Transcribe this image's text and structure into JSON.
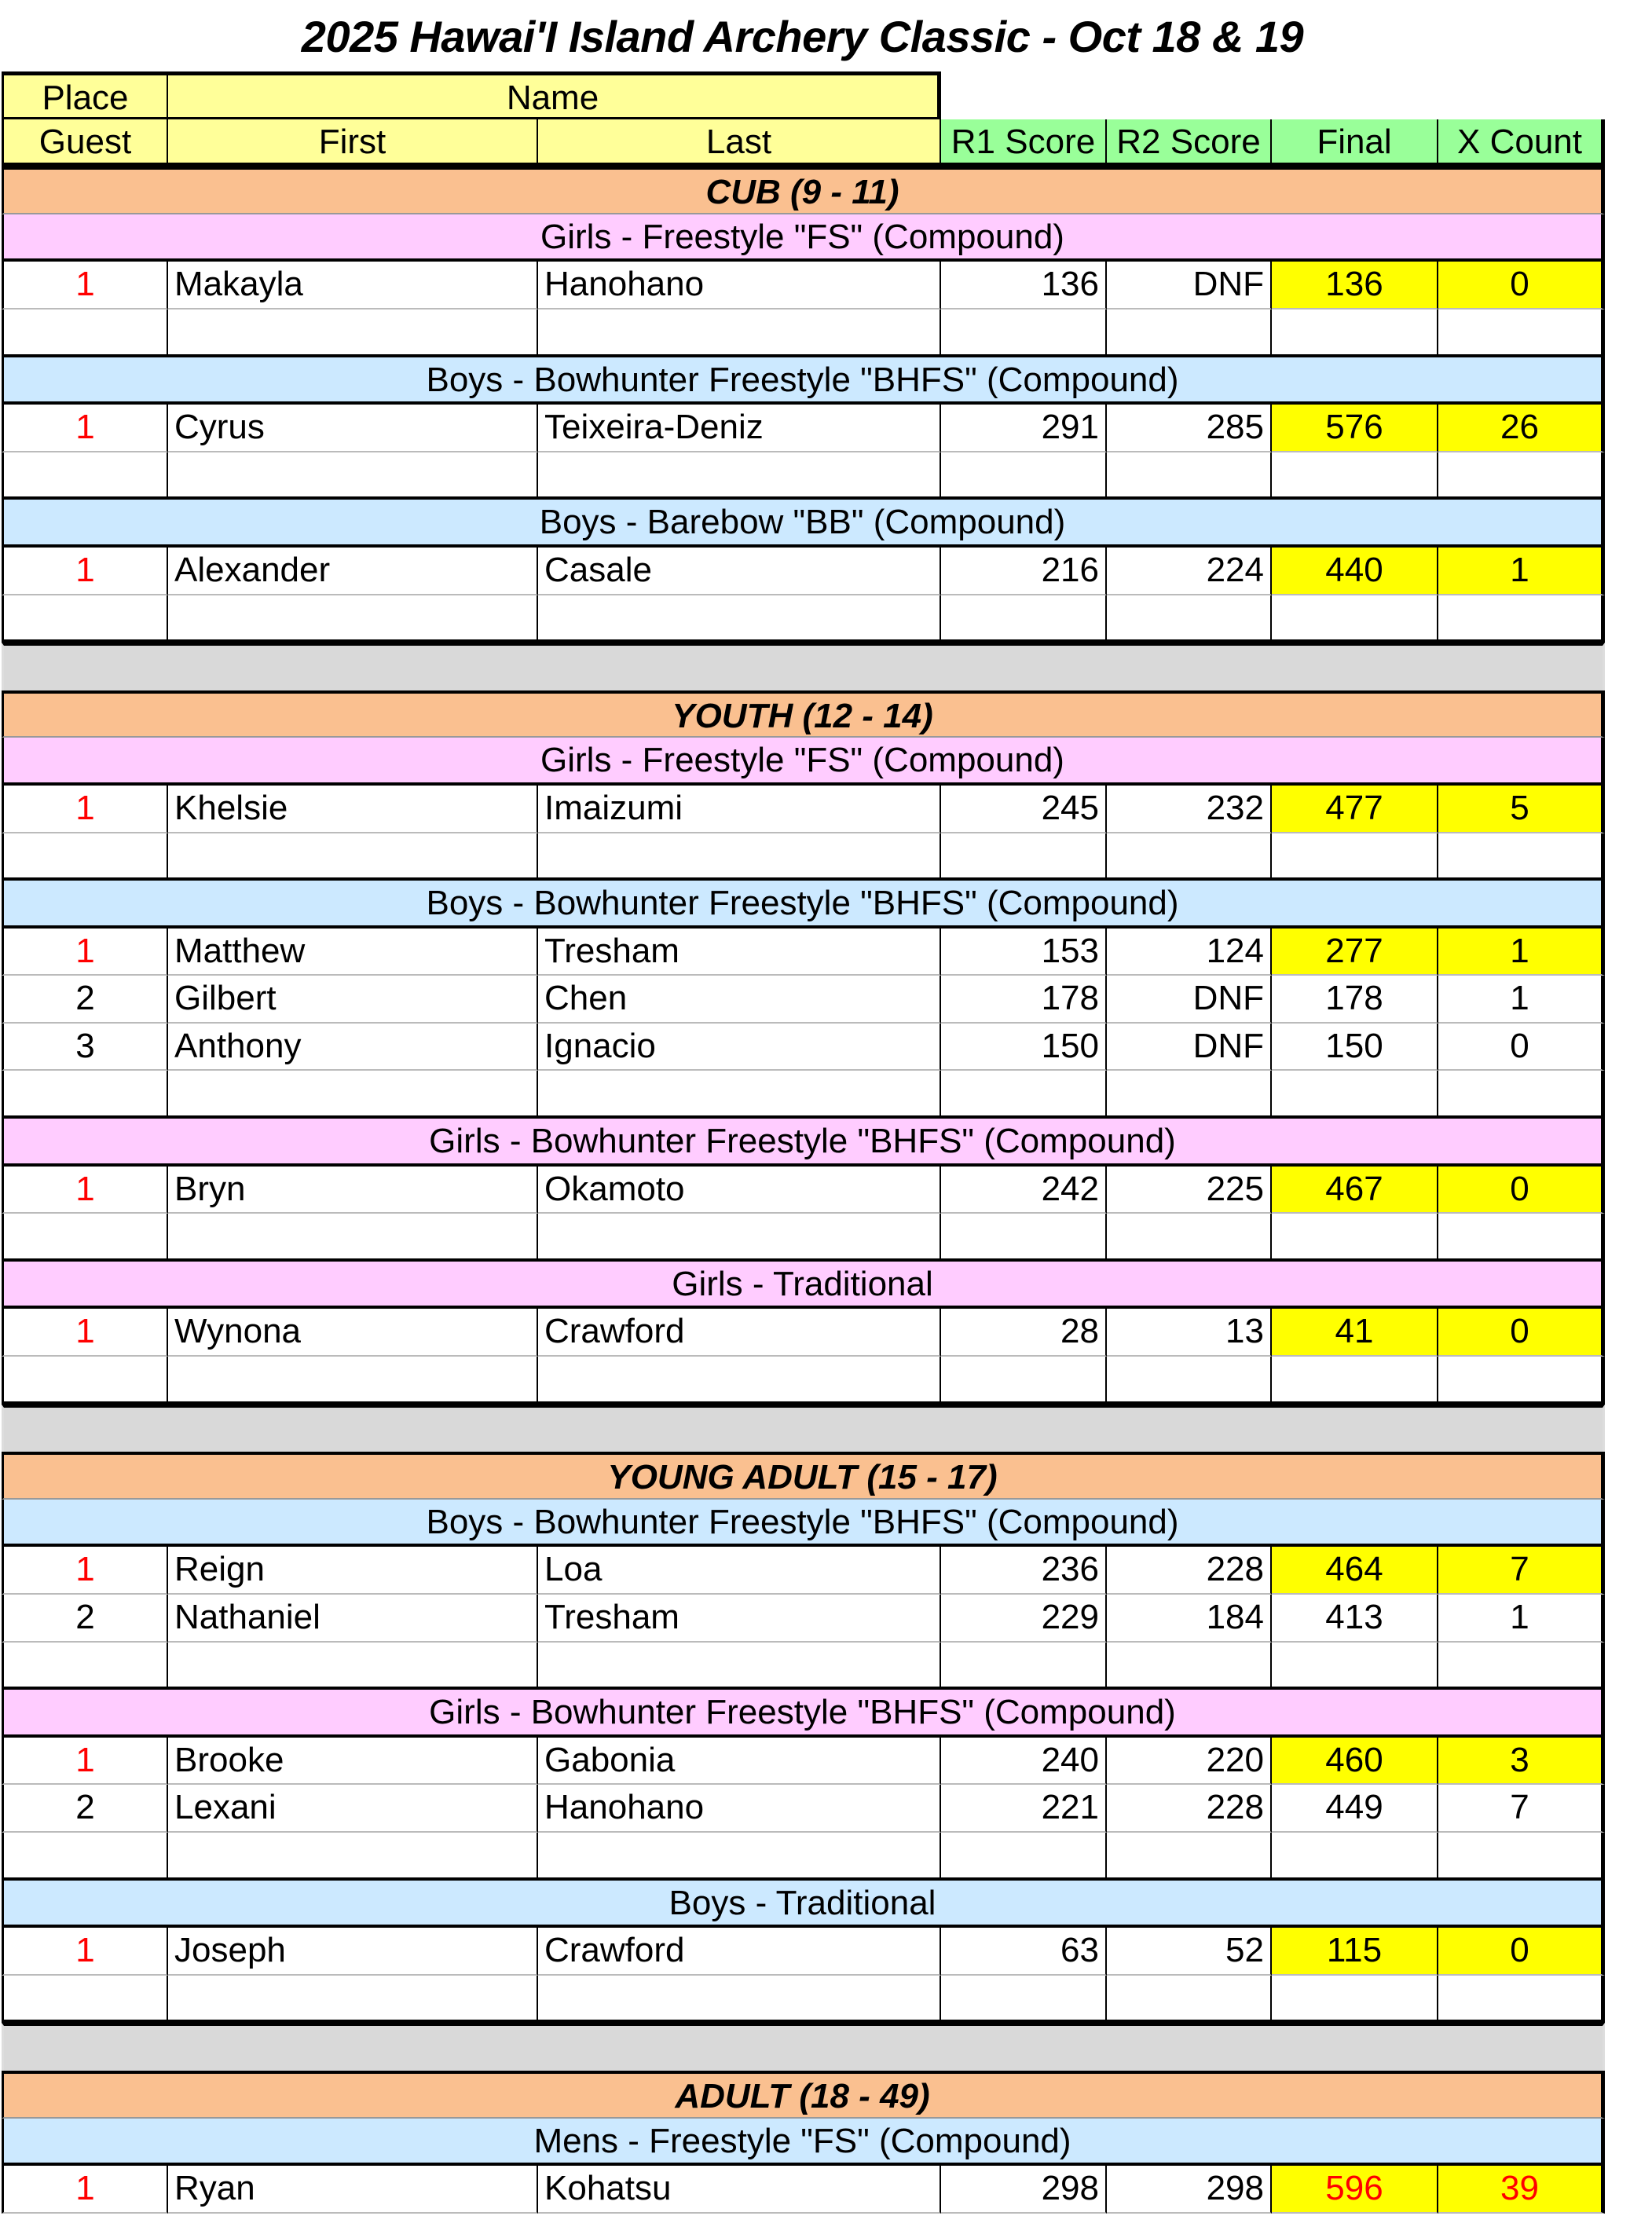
{
  "title": "2025 Hawai'I Island Archery Classic - Oct 18 & 19",
  "header": {
    "row1": {
      "place": "Place",
      "name": "Name"
    },
    "row2": {
      "guest": "Guest",
      "first": "First",
      "last": "Last",
      "r1": "R1 Score",
      "r2": "R2 Score",
      "final": "Final",
      "x": "X Count"
    }
  },
  "colors": {
    "header_name": "#ffff99",
    "header_score": "#99ff99",
    "category": "#fac090",
    "girls": "#ffccff",
    "boys": "#cce9ff",
    "spacer": "#d9d9d9",
    "winner_highlight": "#ffff00",
    "place_first": "#ff0000"
  },
  "sections": [
    {
      "title": "CUB (9 - 11)",
      "divisions": [
        {
          "name": "Girls - Freestyle \"FS\" (Compound)",
          "band_color": "#ffccff",
          "rows": [
            {
              "place": "1",
              "first": "Makayla",
              "last": "Hanohano",
              "r1": "136",
              "r2": "DNF",
              "final": "136",
              "x": "0",
              "highlight": true
            }
          ]
        },
        {
          "name": "Boys - Bowhunter Freestyle \"BHFS\" (Compound)",
          "band_color": "#cce9ff",
          "rows": [
            {
              "place": "1",
              "first": "Cyrus",
              "last": "Teixeira-Deniz",
              "r1": "291",
              "r2": "285",
              "final": "576",
              "x": "26",
              "highlight": true
            }
          ]
        },
        {
          "name": "Boys - Barebow \"BB\" (Compound)",
          "band_color": "#cce9ff",
          "rows": [
            {
              "place": "1",
              "first": "Alexander",
              "last": "Casale",
              "r1": "216",
              "r2": "224",
              "final": "440",
              "x": "1",
              "highlight": true
            }
          ]
        }
      ]
    },
    {
      "title": "YOUTH (12 - 14)",
      "divisions": [
        {
          "name": "Girls - Freestyle \"FS\" (Compound)",
          "band_color": "#ffccff",
          "rows": [
            {
              "place": "1",
              "first": "Khelsie",
              "last": "Imaizumi",
              "r1": "245",
              "r2": "232",
              "final": "477",
              "x": "5",
              "highlight": true
            }
          ]
        },
        {
          "name": "Boys - Bowhunter Freestyle \"BHFS\" (Compound)",
          "band_color": "#cce9ff",
          "rows": [
            {
              "place": "1",
              "first": "Matthew",
              "last": "Tresham",
              "r1": "153",
              "r2": "124",
              "final": "277",
              "x": "1",
              "highlight": true
            },
            {
              "place": "2",
              "first": "Gilbert",
              "last": "Chen",
              "r1": "178",
              "r2": "DNF",
              "final": "178",
              "x": "1",
              "highlight": false
            },
            {
              "place": "3",
              "first": "Anthony",
              "last": "Ignacio",
              "r1": "150",
              "r2": "DNF",
              "final": "150",
              "x": "0",
              "highlight": false
            }
          ]
        },
        {
          "name": "Girls - Bowhunter Freestyle \"BHFS\" (Compound)",
          "band_color": "#ffccff",
          "rows": [
            {
              "place": "1",
              "first": "Bryn",
              "last": "Okamoto",
              "r1": "242",
              "r2": "225",
              "final": "467",
              "x": "0",
              "highlight": true
            }
          ]
        },
        {
          "name": "Girls - Traditional",
          "band_color": "#ffccff",
          "rows": [
            {
              "place": "1",
              "first": "Wynona",
              "last": "Crawford",
              "r1": "28",
              "r2": "13",
              "final": "41",
              "x": "0",
              "highlight": true
            }
          ]
        }
      ]
    },
    {
      "title": "YOUNG ADULT (15 - 17)",
      "divisions": [
        {
          "name": "Boys - Bowhunter Freestyle \"BHFS\" (Compound)",
          "band_color": "#cce9ff",
          "rows": [
            {
              "place": "1",
              "first": "Reign",
              "last": "Loa",
              "r1": "236",
              "r2": "228",
              "final": "464",
              "x": "7",
              "highlight": true
            },
            {
              "place": "2",
              "first": "Nathaniel",
              "last": "Tresham",
              "r1": "229",
              "r2": "184",
              "final": "413",
              "x": "1",
              "highlight": false
            }
          ]
        },
        {
          "name": "Girls - Bowhunter Freestyle \"BHFS\" (Compound)",
          "band_color": "#ffccff",
          "rows": [
            {
              "place": "1",
              "first": "Brooke",
              "last": "Gabonia",
              "r1": "240",
              "r2": "220",
              "final": "460",
              "x": "3",
              "highlight": true
            },
            {
              "place": "2",
              "first": "Lexani",
              "last": "Hanohano",
              "r1": "221",
              "r2": "228",
              "final": "449",
              "x": "7",
              "highlight": false
            }
          ]
        },
        {
          "name": "Boys - Traditional",
          "band_color": "#cce9ff",
          "rows": [
            {
              "place": "1",
              "first": "Joseph",
              "last": "Crawford",
              "r1": "63",
              "r2": "52",
              "final": "115",
              "x": "0",
              "highlight": true
            }
          ]
        }
      ]
    },
    {
      "title": "ADULT (18 - 49)",
      "divisions": [
        {
          "name": "Mens -  Freestyle \"FS\" (Compound)",
          "band_color": "#cce9ff",
          "rows": [
            {
              "place": "1",
              "first": "Ryan",
              "last": "Kohatsu",
              "r1": "298",
              "r2": "298",
              "final": "596",
              "x": "39",
              "highlight": true,
              "score_red": true
            }
          ]
        }
      ]
    }
  ]
}
